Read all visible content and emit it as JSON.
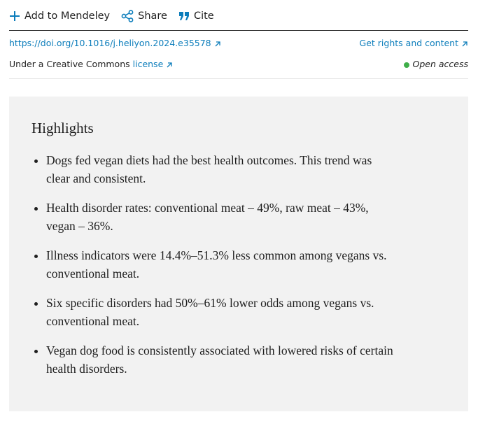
{
  "toolbar": {
    "add": "Add to Mendeley",
    "share": "Share",
    "cite": "Cite"
  },
  "links": {
    "doi": "https://doi.org/10.1016/j.heliyon.2024.e35578",
    "rights": "Get rights and content",
    "license_prefix": "Under a Creative Commons",
    "license": "license",
    "access": "Open access"
  },
  "highlights": {
    "title": "Highlights",
    "items": [
      "Dogs fed vegan diets had the best health outcomes. This trend was clear and consistent.",
      "Health disorder rates: conventional meat – 49%, raw meat – 43%, vegan – 36%.",
      "Illness indicators were 14.4%–51.3% less common among vegans vs. conventional meat.",
      "Six specific disorders had 50%–61% lower odds among vegans vs. conventional meat.",
      "Vegan dog food is consistently associated with lowered risks of certain health disorders."
    ]
  }
}
